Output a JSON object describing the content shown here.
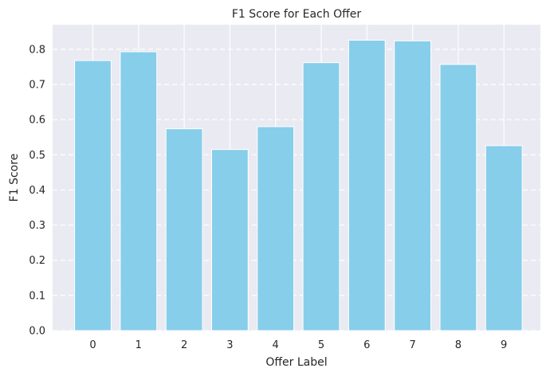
{
  "chart_data": {
    "type": "bar",
    "title": "F1 Score for Each Offer",
    "xlabel": "Offer Label",
    "ylabel": "F1 Score",
    "categories": [
      "0",
      "1",
      "2",
      "3",
      "4",
      "5",
      "6",
      "7",
      "8",
      "9"
    ],
    "values": [
      0.768,
      0.793,
      0.574,
      0.515,
      0.58,
      0.762,
      0.826,
      0.824,
      0.757,
      0.526
    ],
    "ylim": [
      0,
      0.87
    ],
    "yticks": [
      "0.0",
      "0.1",
      "0.2",
      "0.3",
      "0.4",
      "0.5",
      "0.6",
      "0.7",
      "0.8"
    ],
    "grid": true,
    "legend": "none",
    "colors": {
      "bar": "#87ceeb",
      "bar_edge": "#ffffff",
      "plot_background": "#eaeaf2",
      "grid": "#ffffff",
      "text": "#262626"
    }
  }
}
